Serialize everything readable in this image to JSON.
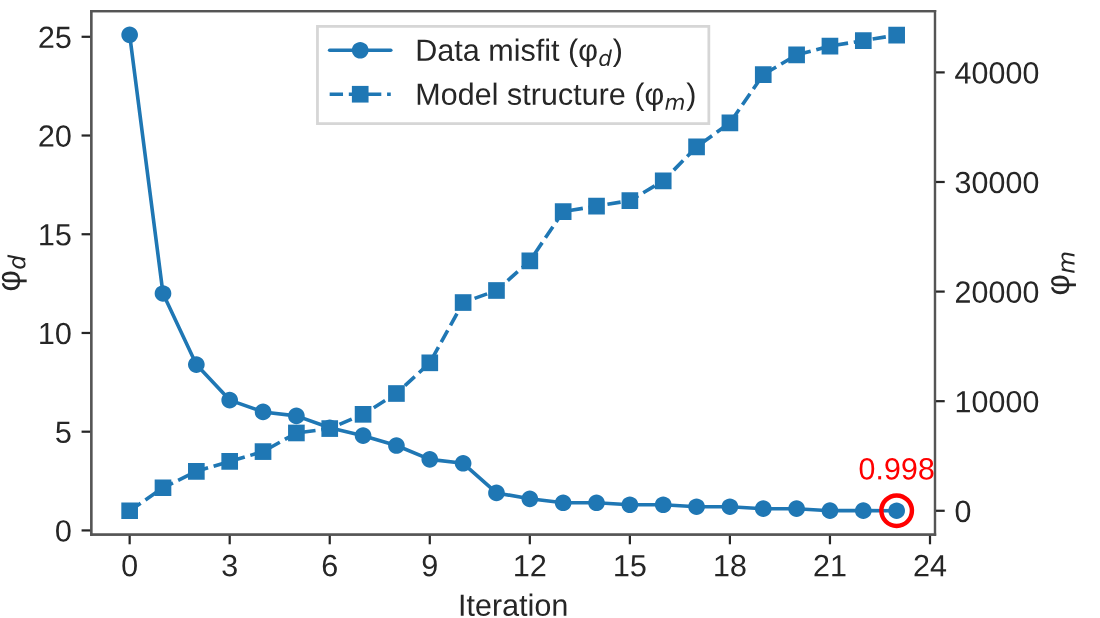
{
  "chart_data": {
    "type": "line",
    "xlabel": "Iteration",
    "ylabel": "φ$_{d}$",
    "y2label": "φ$_{m}$",
    "x": [
      0,
      1,
      2,
      3,
      4,
      5,
      6,
      7,
      8,
      9,
      10,
      11,
      12,
      13,
      14,
      15,
      16,
      17,
      18,
      19,
      20,
      21,
      22,
      23
    ],
    "series": [
      {
        "name": "Data misfit (φ$_{d}$)",
        "color": "#1f77b4",
        "marker": "circle",
        "line_style": "solid",
        "values": [
          25.1,
          12.0,
          8.4,
          6.6,
          6.0,
          5.8,
          5.2,
          4.8,
          4.3,
          3.6,
          3.4,
          1.9,
          1.6,
          1.4,
          1.4,
          1.3,
          1.3,
          1.2,
          1.2,
          1.1,
          1.1,
          1.0,
          1.0,
          0.998
        ]
      },
      {
        "name": "Model structure (φ$_{m}$)",
        "color": "#1f77b4",
        "marker": "square",
        "line_style": "dashed",
        "axis": "y2",
        "values": [
          0,
          2100,
          3600,
          4500,
          5400,
          7100,
          7500,
          8800,
          10700,
          13500,
          19000,
          20100,
          22800,
          27300,
          27800,
          28300,
          30100,
          33200,
          35400,
          39800,
          41600,
          42400,
          42900,
          43400
        ]
      }
    ],
    "xlim": [
      -1.15,
      24.15
    ],
    "xticks": [
      0,
      3,
      6,
      9,
      12,
      15,
      18,
      21,
      24
    ],
    "ylim": [
      -0.21,
      26.3
    ],
    "yticks": [
      0,
      5,
      10,
      15,
      20,
      25
    ],
    "y2lim": [
      -2171,
      45590
    ],
    "y2ticks": [
      0,
      10000,
      20000,
      30000,
      40000
    ],
    "annotations": [
      {
        "text": "0.998",
        "x": 23,
        "y": 0.998
      }
    ],
    "grid": false,
    "legend": "top"
  }
}
